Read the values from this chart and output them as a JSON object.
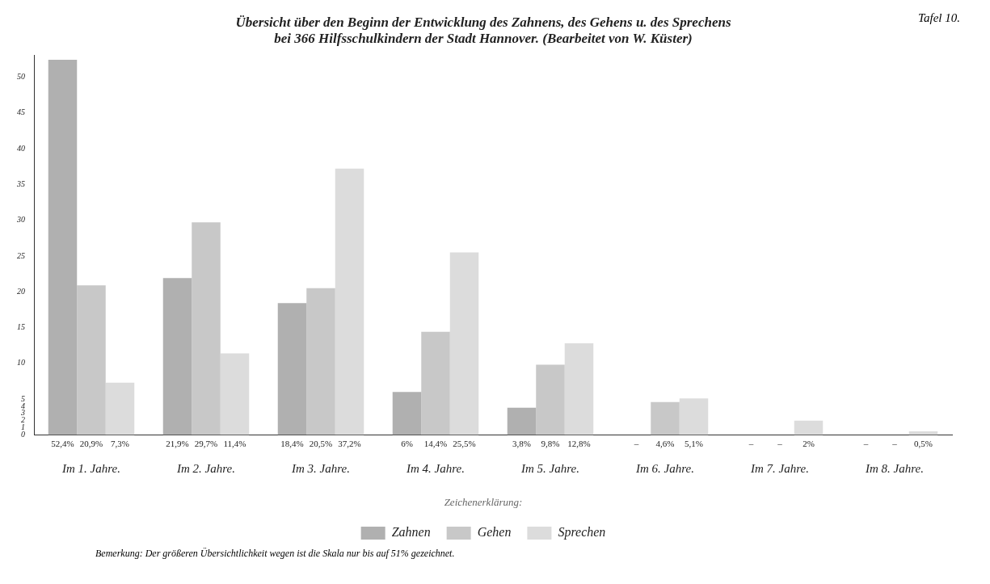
{
  "chart_data": {
    "type": "bar",
    "title": [
      "Übersicht über den Beginn der Entwicklung des Zahnens, des Gehens u. des Sprechens",
      "bei 366 Hilfsschulkindern der Stadt Hannover. (Bearbeitet von W. Küster)"
    ],
    "categories": [
      "Im 1. Jahre.",
      "Im 2. Jahre.",
      "Im 3. Jahre.",
      "Im 4. Jahre.",
      "Im 5. Jahre.",
      "Im 6. Jahre.",
      "Im 7. Jahre.",
      "Im 8. Jahre."
    ],
    "series": [
      {
        "name": "Zahnen",
        "color": "#b0b0b0",
        "values": [
          52.4,
          21.9,
          18.4,
          6,
          3.8,
          null,
          null,
          null
        ],
        "value_labels": [
          "52,4%",
          "21,9%",
          "18,4%",
          "6%",
          "3,8%",
          "–",
          "–",
          "–"
        ]
      },
      {
        "name": "Gehen",
        "color": "#c8c8c8",
        "values": [
          20.9,
          29.7,
          20.5,
          14.4,
          9.8,
          4.6,
          null,
          null
        ],
        "value_labels": [
          "20,9%",
          "29,7%",
          "20,5%",
          "14,4%",
          "9,8%",
          "4,6%",
          "–",
          "–"
        ]
      },
      {
        "name": "Sprechen",
        "color": "#dcdcdc",
        "values": [
          7.3,
          11.4,
          37.2,
          25.5,
          12.8,
          5.1,
          2,
          0.5
        ],
        "value_labels": [
          "7,3%",
          "11,4%",
          "37,2%",
          "25,5%",
          "12,8%",
          "5,1%",
          "2%",
          "0,5%"
        ]
      }
    ],
    "ylim": [
      0,
      53
    ],
    "yticks": [
      0,
      1,
      2,
      3,
      4,
      5,
      10,
      15,
      20,
      25,
      30,
      35,
      40,
      45,
      50
    ],
    "legend": "bottom",
    "legend_title": "Zeichenerklärung:",
    "annotations": [
      "Tafel 10.",
      "Bemerkung: Der größeren Übersichtlichkeit wegen ist die Skala nur bis auf 51% gezeichnet."
    ]
  }
}
